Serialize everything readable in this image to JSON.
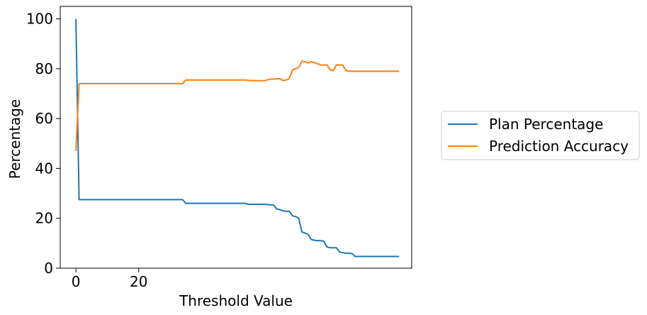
{
  "chart_data": {
    "type": "line",
    "title": "",
    "xlabel": "Threshold Value",
    "ylabel": "Percentage",
    "xlim": [
      -5,
      107
    ],
    "ylim": [
      0,
      105
    ],
    "xticks": [
      0,
      20
    ],
    "yticks": [
      0,
      20,
      40,
      60,
      80,
      100
    ],
    "grid": false,
    "legend_position": "right, outside plot",
    "series": [
      {
        "name": "Plan Percentage",
        "color": "#1f77b4",
        "x": [
          0,
          1,
          2,
          10,
          20,
          30,
          34,
          35,
          40,
          50,
          54,
          55,
          60,
          62,
          63,
          64,
          65,
          66,
          67,
          68,
          69,
          70,
          71,
          72,
          73,
          74,
          75,
          76,
          77,
          78,
          79,
          80,
          81,
          82,
          83,
          84,
          85,
          86,
          87,
          88,
          89,
          90,
          91,
          92,
          93,
          94,
          95,
          96,
          97,
          98,
          99,
          100,
          101,
          102,
          103
        ],
        "y": [
          100,
          27.5,
          27.5,
          27.5,
          27.5,
          27.5,
          27.5,
          26,
          26,
          26,
          26,
          25.6,
          25.6,
          25.4,
          25.3,
          23.7,
          23.5,
          23,
          22.8,
          22.8,
          21,
          20.7,
          20,
          14.5,
          14.1,
          13.5,
          11.5,
          11.2,
          11,
          11,
          10.8,
          8.5,
          8.2,
          8.2,
          8.2,
          6.5,
          6.2,
          6,
          6,
          5.8,
          4.7,
          4.7,
          4.7,
          4.7,
          4.7,
          4.7,
          4.7,
          4.7,
          4.7,
          4.7,
          4.7,
          4.7,
          4.7,
          4.7,
          4.7
        ]
      },
      {
        "name": "Prediction Accuracy",
        "color": "#ff7f0e",
        "x": [
          0,
          1,
          2,
          10,
          20,
          30,
          34,
          35,
          40,
          50,
          54,
          55,
          58,
          60,
          61,
          62,
          63,
          64,
          65,
          66,
          67,
          68,
          69,
          70,
          71,
          72,
          73,
          74,
          75,
          76,
          77,
          78,
          79,
          80,
          81,
          82,
          83,
          84,
          85,
          86,
          87,
          88,
          89,
          90,
          91,
          92,
          93,
          94,
          95,
          96,
          97,
          98,
          99,
          100,
          101,
          102,
          103
        ],
        "y": [
          47,
          74,
          74,
          74,
          74,
          74,
          74,
          75.5,
          75.5,
          75.5,
          75.5,
          75.3,
          75.2,
          75.2,
          75.5,
          75.8,
          75.8,
          76,
          76,
          75.2,
          75.5,
          76,
          79.5,
          80,
          80.5,
          83,
          82.8,
          82.3,
          82.8,
          82.5,
          82,
          81.5,
          81.5,
          81.5,
          79.5,
          79.3,
          81.5,
          81.5,
          81.5,
          79.3,
          79,
          79,
          79,
          79,
          79,
          79,
          79,
          79,
          79,
          79,
          79,
          79,
          79,
          79,
          79,
          79,
          79
        ]
      }
    ]
  }
}
